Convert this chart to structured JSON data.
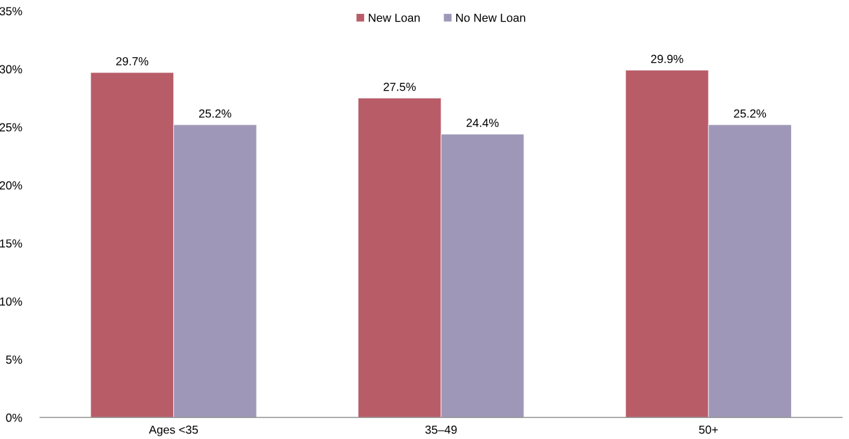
{
  "chart_data": {
    "type": "bar",
    "categories": [
      "Ages <35",
      "35–49",
      "50+"
    ],
    "series": [
      {
        "name": "New Loan",
        "color": "#b85c68",
        "values": [
          29.7,
          27.5,
          29.9
        ],
        "value_labels": [
          "29.7%",
          "27.5%",
          "29.9%"
        ]
      },
      {
        "name": "No New Loan",
        "color": "#9e97b8",
        "values": [
          25.2,
          24.4,
          25.2
        ],
        "value_labels": [
          "25.2%",
          "24.4%",
          "25.2%"
        ]
      }
    ],
    "ylim": [
      0,
      35
    ],
    "yticks": [
      {
        "value": 0,
        "label": "0%"
      },
      {
        "value": 5,
        "label": "5%"
      },
      {
        "value": 10,
        "label": "10%"
      },
      {
        "value": 15,
        "label": "15%"
      },
      {
        "value": 20,
        "label": "20%"
      },
      {
        "value": 25,
        "label": "25%"
      },
      {
        "value": 30,
        "label": "30%"
      },
      {
        "value": 35,
        "label": "35%"
      }
    ],
    "grid": false,
    "legend": "top"
  }
}
